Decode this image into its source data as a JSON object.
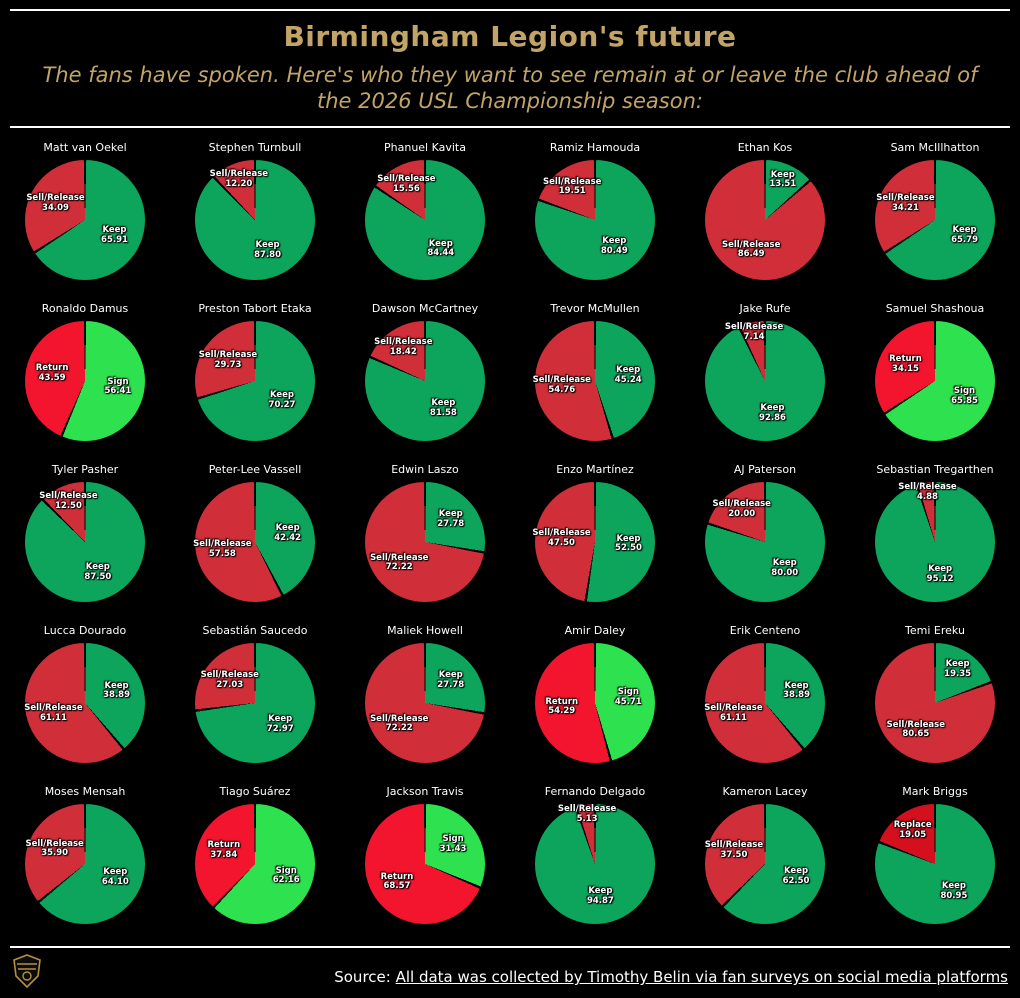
{
  "header": {
    "title": "Birmingham Legion's future",
    "subtitle": "The fans have spoken. Here's who they want to see remain at or leave the club ahead of the 2026 USL Championship season:"
  },
  "colors": {
    "background": "#000000",
    "title": "#c2a468",
    "text": "#ffffff",
    "keep": "#0da55c",
    "sell": "#d02f3a",
    "sign": "#2de24e",
    "return": "#f3142e",
    "replace": "#d40f1e"
  },
  "footer": {
    "source_prefix": "Source: ",
    "source_link": "All data was collected by Timothy Belin via fan surveys on social media platforms",
    "logo": "birmingham-legion-crest"
  },
  "chart_data": {
    "type": "pie",
    "title": "Birmingham Legion's future",
    "legend_position": "inside-slice-labels",
    "grid": {
      "columns": 6,
      "rows": 5
    },
    "charts": [
      {
        "player": "Matt van Oekel",
        "slices": [
          {
            "label": "Sell/Release",
            "value": 34.09,
            "color": "sell"
          },
          {
            "label": "Keep",
            "value": 65.91,
            "color": "keep"
          }
        ]
      },
      {
        "player": "Stephen Turnbull",
        "slices": [
          {
            "label": "Sell/Release",
            "value": 12.2,
            "color": "sell"
          },
          {
            "label": "Keep",
            "value": 87.8,
            "color": "keep"
          }
        ]
      },
      {
        "player": "Phanuel Kavita",
        "slices": [
          {
            "label": "Sell/Release",
            "value": 15.56,
            "color": "sell"
          },
          {
            "label": "Keep",
            "value": 84.44,
            "color": "keep"
          }
        ]
      },
      {
        "player": "Ramiz Hamouda",
        "slices": [
          {
            "label": "Sell/Release",
            "value": 19.51,
            "color": "sell"
          },
          {
            "label": "Keep",
            "value": 80.49,
            "color": "keep"
          }
        ]
      },
      {
        "player": "Ethan Kos",
        "slices": [
          {
            "label": "Sell/Release",
            "value": 86.49,
            "color": "sell"
          },
          {
            "label": "Keep",
            "value": 13.51,
            "color": "keep"
          }
        ]
      },
      {
        "player": "Sam McIllhatton",
        "slices": [
          {
            "label": "Sell/Release",
            "value": 34.21,
            "color": "sell"
          },
          {
            "label": "Keep",
            "value": 65.79,
            "color": "keep"
          }
        ]
      },
      {
        "player": "Ronaldo Damus",
        "slices": [
          {
            "label": "Return",
            "value": 43.59,
            "color": "return"
          },
          {
            "label": "Sign",
            "value": 56.41,
            "color": "sign"
          }
        ]
      },
      {
        "player": "Preston Tabort Etaka",
        "slices": [
          {
            "label": "Sell/Release",
            "value": 29.73,
            "color": "sell"
          },
          {
            "label": "Keep",
            "value": 70.27,
            "color": "keep"
          }
        ]
      },
      {
        "player": "Dawson McCartney",
        "slices": [
          {
            "label": "Sell/Release",
            "value": 18.42,
            "color": "sell"
          },
          {
            "label": "Keep",
            "value": 81.58,
            "color": "keep"
          }
        ]
      },
      {
        "player": "Trevor McMullen",
        "slices": [
          {
            "label": "Sell/Release",
            "value": 54.76,
            "color": "sell"
          },
          {
            "label": "Keep",
            "value": 45.24,
            "color": "keep"
          }
        ]
      },
      {
        "player": "Jake Rufe",
        "slices": [
          {
            "label": "Sell/Release",
            "value": 7.14,
            "color": "sell"
          },
          {
            "label": "Keep",
            "value": 92.86,
            "color": "keep"
          }
        ]
      },
      {
        "player": "Samuel Shashoua",
        "slices": [
          {
            "label": "Return",
            "value": 34.15,
            "color": "return"
          },
          {
            "label": "Sign",
            "value": 65.85,
            "color": "sign"
          }
        ]
      },
      {
        "player": "Tyler Pasher",
        "slices": [
          {
            "label": "Sell/Release",
            "value": 12.5,
            "color": "sell"
          },
          {
            "label": "Keep",
            "value": 87.5,
            "color": "keep"
          }
        ]
      },
      {
        "player": "Peter-Lee Vassell",
        "slices": [
          {
            "label": "Sell/Release",
            "value": 57.58,
            "color": "sell"
          },
          {
            "label": "Keep",
            "value": 42.42,
            "color": "keep"
          }
        ]
      },
      {
        "player": "Edwin Laszo",
        "slices": [
          {
            "label": "Sell/Release",
            "value": 72.22,
            "color": "sell"
          },
          {
            "label": "Keep",
            "value": 27.78,
            "color": "keep"
          }
        ]
      },
      {
        "player": "Enzo Martínez",
        "slices": [
          {
            "label": "Sell/Release",
            "value": 47.5,
            "color": "sell"
          },
          {
            "label": "Keep",
            "value": 52.5,
            "color": "keep"
          }
        ]
      },
      {
        "player": "AJ Paterson",
        "slices": [
          {
            "label": "Sell/Release",
            "value": 20.0,
            "color": "sell"
          },
          {
            "label": "Keep",
            "value": 80.0,
            "color": "keep"
          }
        ]
      },
      {
        "player": "Sebastian Tregarthen",
        "slices": [
          {
            "label": "Sell/Release",
            "value": 4.88,
            "color": "sell"
          },
          {
            "label": "Keep",
            "value": 95.12,
            "color": "keep"
          }
        ]
      },
      {
        "player": "Lucca Dourado",
        "slices": [
          {
            "label": "Sell/Release",
            "value": 61.11,
            "color": "sell"
          },
          {
            "label": "Keep",
            "value": 38.89,
            "color": "keep"
          }
        ]
      },
      {
        "player": "Sebastián Saucedo",
        "slices": [
          {
            "label": "Sell/Release",
            "value": 27.03,
            "color": "sell"
          },
          {
            "label": "Keep",
            "value": 72.97,
            "color": "keep"
          }
        ]
      },
      {
        "player": "Maliek Howell",
        "slices": [
          {
            "label": "Sell/Release",
            "value": 72.22,
            "color": "sell"
          },
          {
            "label": "Keep",
            "value": 27.78,
            "color": "keep"
          }
        ]
      },
      {
        "player": "Amir Daley",
        "slices": [
          {
            "label": "Return",
            "value": 54.29,
            "color": "return"
          },
          {
            "label": "Sign",
            "value": 45.71,
            "color": "sign"
          }
        ]
      },
      {
        "player": "Erik Centeno",
        "slices": [
          {
            "label": "Sell/Release",
            "value": 61.11,
            "color": "sell"
          },
          {
            "label": "Keep",
            "value": 38.89,
            "color": "keep"
          }
        ]
      },
      {
        "player": "Temi Ereku",
        "slices": [
          {
            "label": "Sell/Release",
            "value": 80.65,
            "color": "sell"
          },
          {
            "label": "Keep",
            "value": 19.35,
            "color": "keep"
          }
        ]
      },
      {
        "player": "Moses Mensah",
        "slices": [
          {
            "label": "Sell/Release",
            "value": 35.9,
            "color": "sell"
          },
          {
            "label": "Keep",
            "value": 64.1,
            "color": "keep"
          }
        ]
      },
      {
        "player": "Tiago Suárez",
        "slices": [
          {
            "label": "Return",
            "value": 37.84,
            "color": "return"
          },
          {
            "label": "Sign",
            "value": 62.16,
            "color": "sign"
          }
        ]
      },
      {
        "player": "Jackson Travis",
        "slices": [
          {
            "label": "Return",
            "value": 68.57,
            "color": "return"
          },
          {
            "label": "Sign",
            "value": 31.43,
            "color": "sign"
          }
        ]
      },
      {
        "player": "Fernando Delgado",
        "slices": [
          {
            "label": "Sell/Release",
            "value": 5.13,
            "color": "sell"
          },
          {
            "label": "Keep",
            "value": 94.87,
            "color": "keep"
          }
        ]
      },
      {
        "player": "Kameron Lacey",
        "slices": [
          {
            "label": "Sell/Release",
            "value": 37.5,
            "color": "sell"
          },
          {
            "label": "Keep",
            "value": 62.5,
            "color": "keep"
          }
        ]
      },
      {
        "player": "Mark Briggs",
        "slices": [
          {
            "label": "Replace",
            "value": 19.05,
            "color": "replace"
          },
          {
            "label": "Keep",
            "value": 80.95,
            "color": "keep"
          }
        ]
      }
    ]
  }
}
